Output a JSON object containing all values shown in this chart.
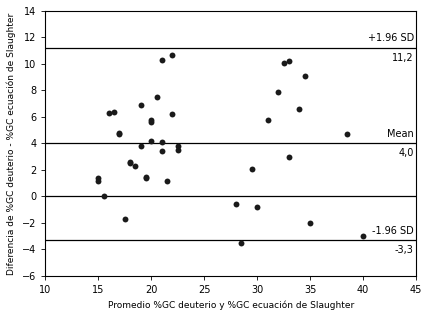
{
  "x_points": [
    15,
    15,
    15.5,
    16,
    16.5,
    17,
    17,
    17.5,
    18,
    18,
    18.5,
    19,
    19,
    19.5,
    19.5,
    20,
    20,
    20,
    20.5,
    21,
    21,
    21,
    21.5,
    22,
    22,
    22.5,
    22.5,
    28,
    28.5,
    29.5,
    30,
    31,
    32,
    32.5,
    33,
    33,
    34,
    34.5,
    35,
    38.5,
    40
  ],
  "y_points": [
    1.2,
    1.4,
    0.0,
    6.3,
    6.4,
    4.7,
    4.8,
    -1.7,
    2.5,
    2.6,
    2.3,
    3.8,
    6.9,
    1.4,
    1.5,
    5.8,
    5.6,
    4.2,
    7.5,
    10.3,
    4.1,
    3.4,
    1.2,
    10.7,
    6.2,
    3.8,
    3.5,
    -0.6,
    -3.5,
    2.1,
    -0.8,
    5.8,
    7.9,
    10.1,
    10.2,
    3.0,
    6.6,
    9.1,
    -2.0,
    4.7,
    -3.0
  ],
  "mean": 4.0,
  "upper_loa": 11.2,
  "lower_loa": -3.3,
  "zero_line": 0.0,
  "xlim": [
    10,
    45
  ],
  "ylim": [
    -6,
    14
  ],
  "xticks": [
    10,
    15,
    20,
    25,
    30,
    35,
    40,
    45
  ],
  "yticks": [
    -6,
    -4,
    -2,
    0,
    2,
    4,
    6,
    8,
    10,
    12,
    14
  ],
  "xlabel": "Promedio %GC deuterio y %GC ecuación de Slaughter",
  "ylabel": "Diferencia de %GC deuterio - %GC ecuación de Slaughter",
  "label_upper": "+1.96 SD",
  "label_upper_val": "11,2",
  "label_mean": "Mean",
  "label_mean_val": "4,0",
  "label_lower": "-1.96 SD",
  "label_lower_val": "-3,3",
  "dot_color": "#1a1a1a",
  "line_color": "#000000",
  "dot_size": 18,
  "line_width": 0.9,
  "font_size_axis_label": 6.5,
  "font_size_tick": 7.0,
  "font_size_annot": 7.0
}
